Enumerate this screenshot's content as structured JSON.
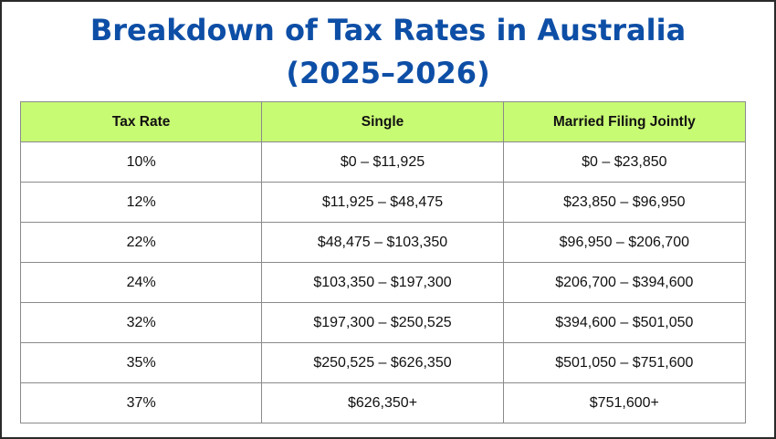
{
  "title": {
    "line1": "Breakdown of Tax Rates in Australia",
    "line2": "(2025–2026)"
  },
  "colors": {
    "title": "#0d4ea6",
    "header_bg": "#c8fb74",
    "border": "#8a8a8a"
  },
  "table": {
    "headers": [
      "Tax Rate",
      "Single",
      "Married Filing Jointly"
    ],
    "rows": [
      [
        "10%",
        "$0 – $11,925",
        "$0 – $23,850"
      ],
      [
        "12%",
        "$11,925 – $48,475",
        "$23,850 – $96,950"
      ],
      [
        "22%",
        "$48,475 – $103,350",
        "$96,950 – $206,700"
      ],
      [
        "24%",
        "$103,350 – $197,300",
        "$206,700 – $394,600"
      ],
      [
        "32%",
        "$197,300 – $250,525",
        "$394,600 – $501,050"
      ],
      [
        "35%",
        "$250,525 – $626,350",
        "$501,050 – $751,600"
      ],
      [
        "37%",
        "$626,350+",
        "$751,600+"
      ]
    ]
  }
}
